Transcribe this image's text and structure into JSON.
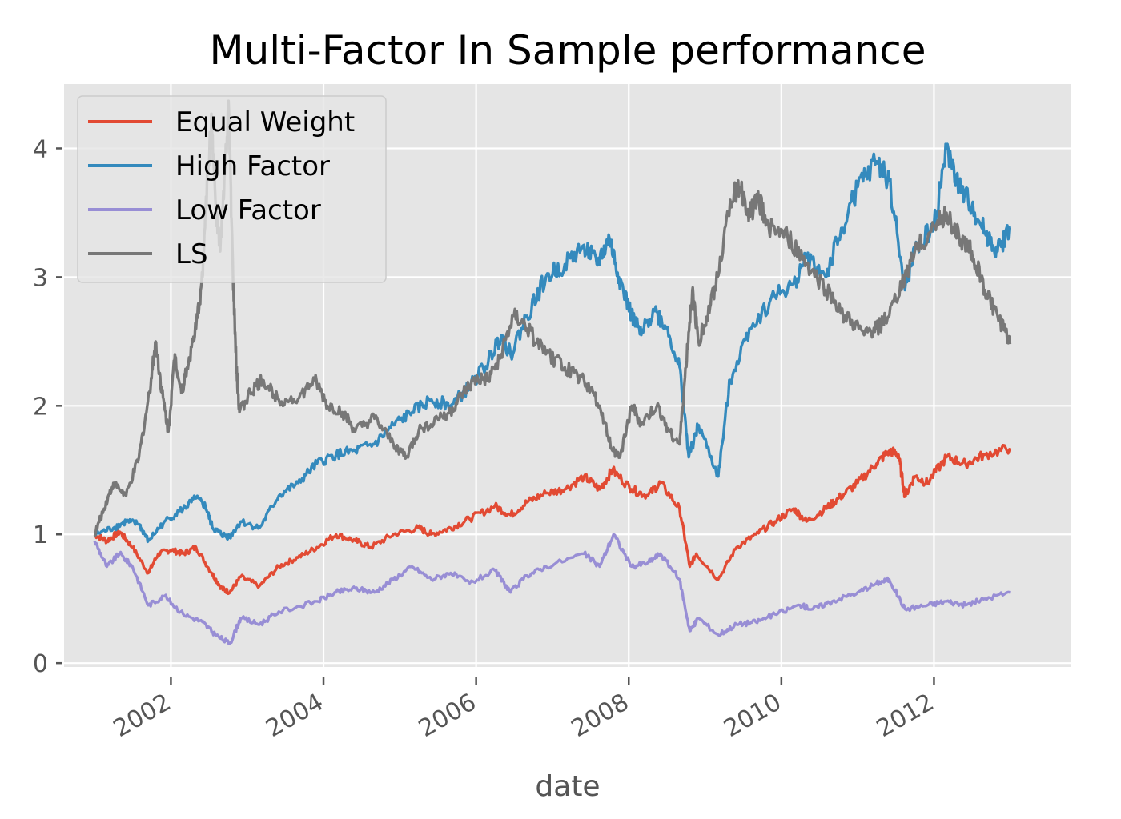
{
  "chart_data": {
    "type": "line",
    "title": "Multi-Factor In Sample performance",
    "xlabel": "date",
    "ylabel": "",
    "xlim": [
      2000.6,
      2013.8
    ],
    "ylim": [
      -0.03,
      4.5
    ],
    "x_ticks": [
      2002,
      2004,
      2006,
      2008,
      2010,
      2012
    ],
    "x_tick_labels": [
      "2002",
      "2004",
      "2006",
      "2008",
      "2010",
      "2012"
    ],
    "y_ticks": [
      0,
      1,
      2,
      3,
      4
    ],
    "y_tick_labels": [
      "0",
      "1",
      "2",
      "3",
      "4"
    ],
    "grid": true,
    "legend_position": "top-left",
    "colors": {
      "plot_background": "#E5E5E5",
      "grid": "#FFFFFF",
      "text": "#555555"
    },
    "series": [
      {
        "name": "Equal Weight",
        "color": "#E24A33",
        "points": [
          [
            "2001-01-01",
            1.0
          ],
          [
            "2001-03-01",
            0.95
          ],
          [
            "2001-05-01",
            1.02
          ],
          [
            "2001-07-01",
            0.9
          ],
          [
            "2001-09-15",
            0.7
          ],
          [
            "2001-11-01",
            0.85
          ],
          [
            "2002-01-01",
            0.88
          ],
          [
            "2002-03-01",
            0.85
          ],
          [
            "2002-05-01",
            0.9
          ],
          [
            "2002-07-15",
            0.7
          ],
          [
            "2002-09-01",
            0.58
          ],
          [
            "2002-10-10",
            0.55
          ],
          [
            "2002-12-01",
            0.67
          ],
          [
            "2003-03-01",
            0.6
          ],
          [
            "2003-06-01",
            0.75
          ],
          [
            "2003-09-01",
            0.82
          ],
          [
            "2003-12-01",
            0.9
          ],
          [
            "2004-03-01",
            1.0
          ],
          [
            "2004-06-01",
            0.95
          ],
          [
            "2004-08-15",
            0.9
          ],
          [
            "2004-12-01",
            1.0
          ],
          [
            "2005-04-01",
            1.05
          ],
          [
            "2005-06-01",
            1.0
          ],
          [
            "2005-09-01",
            1.05
          ],
          [
            "2005-12-01",
            1.12
          ],
          [
            "2006-04-01",
            1.22
          ],
          [
            "2006-06-15",
            1.15
          ],
          [
            "2006-09-01",
            1.25
          ],
          [
            "2006-12-01",
            1.32
          ],
          [
            "2007-03-01",
            1.35
          ],
          [
            "2007-06-01",
            1.45
          ],
          [
            "2007-08-15",
            1.35
          ],
          [
            "2007-10-15",
            1.5
          ],
          [
            "2008-01-15",
            1.35
          ],
          [
            "2008-04-01",
            1.3
          ],
          [
            "2008-06-01",
            1.4
          ],
          [
            "2008-09-01",
            1.2
          ],
          [
            "2008-10-20",
            0.75
          ],
          [
            "2008-11-20",
            0.85
          ],
          [
            "2009-03-05",
            0.65
          ],
          [
            "2009-06-01",
            0.9
          ],
          [
            "2009-09-01",
            1.0
          ],
          [
            "2009-12-01",
            1.1
          ],
          [
            "2010-03-01",
            1.2
          ],
          [
            "2010-05-01",
            1.1
          ],
          [
            "2010-08-01",
            1.2
          ],
          [
            "2010-10-01",
            1.28
          ],
          [
            "2011-01-01",
            1.4
          ],
          [
            "2011-04-01",
            1.55
          ],
          [
            "2011-06-01",
            1.65
          ],
          [
            "2011-07-15",
            1.62
          ],
          [
            "2011-08-15",
            1.3
          ],
          [
            "2011-10-01",
            1.45
          ],
          [
            "2011-12-01",
            1.4
          ],
          [
            "2012-03-01",
            1.6
          ],
          [
            "2012-06-01",
            1.55
          ],
          [
            "2012-09-01",
            1.62
          ],
          [
            "2012-12-31",
            1.67
          ]
        ]
      },
      {
        "name": "High Factor",
        "color": "#348ABD",
        "points": [
          [
            "2001-01-01",
            1.0
          ],
          [
            "2001-04-01",
            1.05
          ],
          [
            "2001-06-01",
            1.1
          ],
          [
            "2001-08-01",
            1.08
          ],
          [
            "2001-09-15",
            0.95
          ],
          [
            "2001-12-01",
            1.1
          ],
          [
            "2002-03-01",
            1.2
          ],
          [
            "2002-05-01",
            1.28
          ],
          [
            "2002-06-15",
            1.22
          ],
          [
            "2002-07-20",
            1.05
          ],
          [
            "2002-09-01",
            1.0
          ],
          [
            "2002-10-10",
            0.98
          ],
          [
            "2002-12-01",
            1.1
          ],
          [
            "2003-03-01",
            1.05
          ],
          [
            "2003-06-01",
            1.3
          ],
          [
            "2003-09-01",
            1.4
          ],
          [
            "2003-12-01",
            1.55
          ],
          [
            "2004-03-01",
            1.62
          ],
          [
            "2004-06-01",
            1.65
          ],
          [
            "2004-09-01",
            1.7
          ],
          [
            "2004-12-01",
            1.85
          ],
          [
            "2005-03-01",
            1.95
          ],
          [
            "2005-06-01",
            2.05
          ],
          [
            "2005-09-01",
            2.0
          ],
          [
            "2005-12-01",
            2.15
          ],
          [
            "2006-03-01",
            2.35
          ],
          [
            "2006-05-01",
            2.55
          ],
          [
            "2006-06-15",
            2.4
          ],
          [
            "2006-09-01",
            2.7
          ],
          [
            "2006-12-01",
            3.0
          ],
          [
            "2007-03-01",
            3.1
          ],
          [
            "2007-06-01",
            3.25
          ],
          [
            "2007-08-01",
            3.1
          ],
          [
            "2007-10-01",
            3.3
          ],
          [
            "2007-11-15",
            3.0
          ],
          [
            "2008-01-15",
            2.7
          ],
          [
            "2008-03-01",
            2.55
          ],
          [
            "2008-05-01",
            2.75
          ],
          [
            "2008-07-01",
            2.6
          ],
          [
            "2008-09-01",
            2.3
          ],
          [
            "2008-10-15",
            1.6
          ],
          [
            "2008-12-01",
            1.85
          ],
          [
            "2009-03-05",
            1.45
          ],
          [
            "2009-05-01",
            2.2
          ],
          [
            "2009-08-01",
            2.6
          ],
          [
            "2009-12-01",
            2.85
          ],
          [
            "2010-03-01",
            2.95
          ],
          [
            "2010-05-01",
            3.15
          ],
          [
            "2010-08-01",
            3.0
          ],
          [
            "2010-10-01",
            3.3
          ],
          [
            "2011-01-01",
            3.7
          ],
          [
            "2011-04-01",
            3.9
          ],
          [
            "2011-06-01",
            3.75
          ],
          [
            "2011-08-15",
            2.9
          ],
          [
            "2011-10-01",
            3.2
          ],
          [
            "2012-01-01",
            3.4
          ],
          [
            "2012-03-01",
            4.0
          ],
          [
            "2012-05-01",
            3.7
          ],
          [
            "2012-07-01",
            3.55
          ],
          [
            "2012-09-01",
            3.35
          ],
          [
            "2012-11-01",
            3.2
          ],
          [
            "2012-12-31",
            3.38
          ]
        ]
      },
      {
        "name": "Low Factor",
        "color": "#988ED5",
        "points": [
          [
            "2001-01-01",
            0.95
          ],
          [
            "2001-03-01",
            0.75
          ],
          [
            "2001-05-01",
            0.85
          ],
          [
            "2001-07-01",
            0.75
          ],
          [
            "2001-09-15",
            0.45
          ],
          [
            "2001-12-01",
            0.52
          ],
          [
            "2002-03-01",
            0.38
          ],
          [
            "2002-06-01",
            0.32
          ],
          [
            "2002-08-01",
            0.22
          ],
          [
            "2002-10-10",
            0.15
          ],
          [
            "2002-12-01",
            0.35
          ],
          [
            "2003-03-01",
            0.3
          ],
          [
            "2003-06-01",
            0.4
          ],
          [
            "2003-12-01",
            0.48
          ],
          [
            "2004-03-01",
            0.55
          ],
          [
            "2004-06-01",
            0.58
          ],
          [
            "2004-09-01",
            0.55
          ],
          [
            "2004-12-01",
            0.65
          ],
          [
            "2005-03-01",
            0.75
          ],
          [
            "2005-06-01",
            0.65
          ],
          [
            "2005-09-01",
            0.7
          ],
          [
            "2005-12-01",
            0.62
          ],
          [
            "2006-04-01",
            0.72
          ],
          [
            "2006-06-15",
            0.55
          ],
          [
            "2006-09-01",
            0.68
          ],
          [
            "2006-12-01",
            0.75
          ],
          [
            "2007-06-01",
            0.85
          ],
          [
            "2007-08-15",
            0.75
          ],
          [
            "2007-10-20",
            1.0
          ],
          [
            "2008-01-15",
            0.75
          ],
          [
            "2008-04-01",
            0.78
          ],
          [
            "2008-06-01",
            0.85
          ],
          [
            "2008-09-01",
            0.65
          ],
          [
            "2008-10-20",
            0.25
          ],
          [
            "2008-12-01",
            0.35
          ],
          [
            "2009-03-05",
            0.22
          ],
          [
            "2009-06-01",
            0.3
          ],
          [
            "2009-09-01",
            0.32
          ],
          [
            "2009-12-01",
            0.38
          ],
          [
            "2010-04-01",
            0.45
          ],
          [
            "2010-06-01",
            0.42
          ],
          [
            "2010-09-01",
            0.48
          ],
          [
            "2011-01-01",
            0.55
          ],
          [
            "2011-04-01",
            0.62
          ],
          [
            "2011-06-01",
            0.65
          ],
          [
            "2011-08-15",
            0.42
          ],
          [
            "2011-12-01",
            0.45
          ],
          [
            "2012-03-01",
            0.48
          ],
          [
            "2012-06-01",
            0.45
          ],
          [
            "2012-09-01",
            0.5
          ],
          [
            "2012-12-31",
            0.55
          ]
        ]
      },
      {
        "name": "LS",
        "color": "#777777",
        "points": [
          [
            "2001-01-01",
            1.0
          ],
          [
            "2001-02-15",
            1.2
          ],
          [
            "2001-04-01",
            1.4
          ],
          [
            "2001-06-01",
            1.3
          ],
          [
            "2001-08-01",
            1.6
          ],
          [
            "2001-09-20",
            2.1
          ],
          [
            "2001-10-20",
            2.5
          ],
          [
            "2001-11-20",
            2.1
          ],
          [
            "2001-12-20",
            1.8
          ],
          [
            "2002-01-20",
            2.4
          ],
          [
            "2002-02-20",
            2.1
          ],
          [
            "2002-03-20",
            2.3
          ],
          [
            "2002-05-01",
            2.6
          ],
          [
            "2002-06-01",
            3.0
          ],
          [
            "2002-06-25",
            3.8
          ],
          [
            "2002-07-15",
            4.2
          ],
          [
            "2002-08-05",
            3.5
          ],
          [
            "2002-08-25",
            3.2
          ],
          [
            "2002-09-15",
            3.8
          ],
          [
            "2002-10-05",
            4.3
          ],
          [
            "2002-10-25",
            3.0
          ],
          [
            "2002-11-10",
            2.3
          ],
          [
            "2002-11-25",
            1.95
          ],
          [
            "2003-01-15",
            2.1
          ],
          [
            "2003-03-15",
            2.2
          ],
          [
            "2003-06-01",
            2.05
          ],
          [
            "2003-09-01",
            2.05
          ],
          [
            "2003-11-20",
            2.2
          ],
          [
            "2004-01-20",
            2.0
          ],
          [
            "2004-04-01",
            1.95
          ],
          [
            "2004-06-01",
            1.8
          ],
          [
            "2004-09-01",
            1.9
          ],
          [
            "2004-12-01",
            1.7
          ],
          [
            "2005-02-01",
            1.6
          ],
          [
            "2005-04-01",
            1.8
          ],
          [
            "2005-07-01",
            1.9
          ],
          [
            "2005-09-01",
            1.95
          ],
          [
            "2005-11-01",
            2.1
          ],
          [
            "2006-01-01",
            2.2
          ],
          [
            "2006-03-01",
            2.2
          ],
          [
            "2006-05-01",
            2.4
          ],
          [
            "2006-07-01",
            2.7
          ],
          [
            "2006-09-01",
            2.6
          ],
          [
            "2006-12-01",
            2.4
          ],
          [
            "2007-03-01",
            2.3
          ],
          [
            "2007-06-01",
            2.2
          ],
          [
            "2007-08-15",
            2.0
          ],
          [
            "2007-10-15",
            1.65
          ],
          [
            "2007-11-20",
            1.6
          ],
          [
            "2008-01-15",
            2.0
          ],
          [
            "2008-03-01",
            1.85
          ],
          [
            "2008-05-15",
            2.0
          ],
          [
            "2008-07-15",
            1.8
          ],
          [
            "2008-09-01",
            1.7
          ],
          [
            "2008-10-01",
            2.3
          ],
          [
            "2008-11-01",
            2.9
          ],
          [
            "2008-12-01",
            2.5
          ],
          [
            "2009-01-15",
            2.7
          ],
          [
            "2009-03-01",
            3.0
          ],
          [
            "2009-05-01",
            3.6
          ],
          [
            "2009-06-15",
            3.7
          ],
          [
            "2009-08-01",
            3.5
          ],
          [
            "2009-09-15",
            3.6
          ],
          [
            "2009-11-01",
            3.4
          ],
          [
            "2010-02-01",
            3.3
          ],
          [
            "2010-05-01",
            3.1
          ],
          [
            "2010-08-01",
            2.9
          ],
          [
            "2010-11-01",
            2.7
          ],
          [
            "2011-02-01",
            2.55
          ],
          [
            "2011-04-01",
            2.6
          ],
          [
            "2011-06-01",
            2.7
          ],
          [
            "2011-08-15",
            3.0
          ],
          [
            "2011-10-01",
            3.2
          ],
          [
            "2012-01-01",
            3.4
          ],
          [
            "2012-03-01",
            3.5
          ],
          [
            "2012-05-01",
            3.3
          ],
          [
            "2012-07-01",
            3.2
          ],
          [
            "2012-09-01",
            2.9
          ],
          [
            "2012-11-01",
            2.7
          ],
          [
            "2012-12-31",
            2.48
          ]
        ]
      }
    ]
  }
}
